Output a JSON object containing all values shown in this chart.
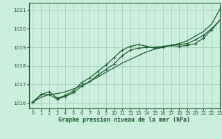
{
  "title": "Graphe pression niveau de la mer (hPa)",
  "bg_color": "#cceedd",
  "grid_color": "#aaccbb",
  "line_color": "#1a5c2a",
  "xlim": [
    -0.5,
    23
  ],
  "ylim": [
    1015.7,
    1021.4
  ],
  "yticks": [
    1016,
    1017,
    1018,
    1019,
    1020,
    1021
  ],
  "xticks": [
    0,
    1,
    2,
    3,
    4,
    5,
    6,
    7,
    8,
    9,
    10,
    11,
    12,
    13,
    14,
    15,
    16,
    17,
    18,
    19,
    20,
    21,
    22,
    23
  ],
  "series1_marked": {
    "x": [
      0,
      1,
      2,
      3,
      4,
      5,
      6,
      7,
      8,
      9,
      10,
      11,
      12,
      13,
      14,
      15,
      16,
      17,
      18,
      19,
      20,
      21,
      22,
      23
    ],
    "y": [
      1016.05,
      1016.45,
      1016.45,
      1016.2,
      1016.35,
      1016.55,
      1016.9,
      1017.15,
      1017.5,
      1017.8,
      1018.1,
      1018.55,
      1018.85,
      1018.95,
      1019.0,
      1019.0,
      1019.05,
      1019.1,
      1019.15,
      1019.2,
      1019.4,
      1019.65,
      1020.0,
      1020.45
    ]
  },
  "series2_marked": {
    "x": [
      0,
      1,
      2,
      3,
      4,
      5,
      6,
      7,
      8,
      9,
      10,
      11,
      12,
      13,
      14,
      15,
      16,
      17,
      18,
      19,
      20,
      21,
      22,
      23
    ],
    "y": [
      1016.05,
      1016.45,
      1016.6,
      1016.25,
      1016.4,
      1016.65,
      1017.1,
      1017.35,
      1017.7,
      1018.05,
      1018.45,
      1018.85,
      1019.05,
      1019.15,
      1019.05,
      1018.95,
      1019.0,
      1019.1,
      1019.05,
      1019.1,
      1019.2,
      1019.5,
      1019.95,
      1020.45
    ]
  },
  "series3_smooth": {
    "x": [
      0,
      1,
      2,
      3,
      4,
      5,
      6,
      7,
      8,
      9,
      10,
      11,
      12,
      13,
      14,
      15,
      16,
      17,
      18,
      19,
      20,
      21,
      22,
      23
    ],
    "y": [
      1016.05,
      1016.3,
      1016.45,
      1016.5,
      1016.6,
      1016.75,
      1016.95,
      1017.15,
      1017.4,
      1017.65,
      1017.9,
      1018.15,
      1018.35,
      1018.55,
      1018.75,
      1018.9,
      1019.0,
      1019.1,
      1019.2,
      1019.35,
      1019.6,
      1019.85,
      1020.25,
      1021.05
    ]
  }
}
